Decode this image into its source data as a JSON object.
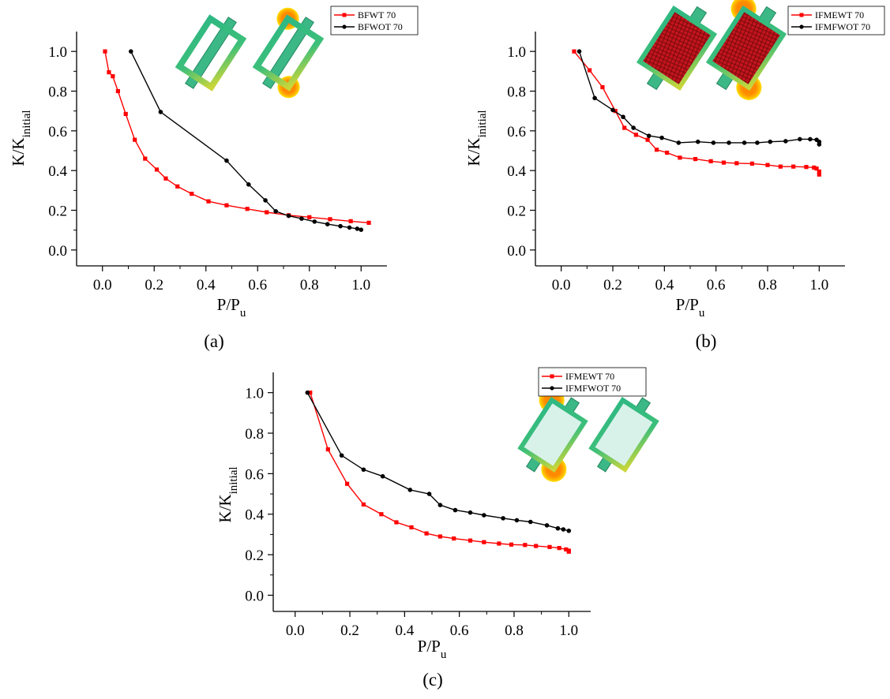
{
  "chart_data": [
    {
      "id": "a",
      "type": "line",
      "panel_label": "(a)",
      "xlabel": "P/P",
      "xlabel_sub": "u",
      "ylabel": "K/K",
      "ylabel_sub": "initial",
      "xlim": [
        -0.1,
        1.1
      ],
      "ylim": [
        -0.08,
        1.1
      ],
      "xticks": [
        "0.0",
        "0.2",
        "0.4",
        "0.6",
        "0.8",
        "1.0"
      ],
      "yticks": [
        "0.0",
        "0.2",
        "0.4",
        "0.6",
        "0.8",
        "1.0"
      ],
      "legend_position": "top-right",
      "series": [
        {
          "name": "BFWT 70",
          "color": "#ff0000",
          "marker": "square",
          "x": [
            0.01,
            0.025,
            0.04,
            0.06,
            0.09,
            0.125,
            0.165,
            0.21,
            0.245,
            0.29,
            0.345,
            0.41,
            0.48,
            0.56,
            0.635,
            0.72,
            0.8,
            0.88,
            0.96,
            1.03
          ],
          "y": [
            1.0,
            0.895,
            0.875,
            0.8,
            0.685,
            0.555,
            0.46,
            0.405,
            0.36,
            0.32,
            0.283,
            0.245,
            0.225,
            0.207,
            0.19,
            0.175,
            0.165,
            0.155,
            0.145,
            0.137
          ]
        },
        {
          "name": "BFWOT 70",
          "color": "#000000",
          "marker": "circle",
          "x": [
            0.11,
            0.225,
            0.48,
            0.565,
            0.63,
            0.67,
            0.72,
            0.77,
            0.82,
            0.87,
            0.92,
            0.955,
            0.985,
            1.0
          ],
          "y": [
            1.0,
            0.695,
            0.45,
            0.33,
            0.25,
            0.195,
            0.172,
            0.158,
            0.143,
            0.13,
            0.12,
            0.113,
            0.107,
            0.102
          ]
        }
      ]
    },
    {
      "id": "b",
      "type": "line",
      "panel_label": "(b)",
      "xlabel": "P/P",
      "xlabel_sub": "u",
      "ylabel": "K/K",
      "ylabel_sub": "initial",
      "xlim": [
        -0.1,
        1.1
      ],
      "ylim": [
        -0.08,
        1.1
      ],
      "xticks": [
        "0.0",
        "0.2",
        "0.4",
        "0.6",
        "0.8",
        "1.0"
      ],
      "yticks": [
        "0.0",
        "0.2",
        "0.4",
        "0.6",
        "0.8",
        "1.0"
      ],
      "legend_position": "top-right",
      "series": [
        {
          "name": "IFMEWT 70",
          "color": "#ff0000",
          "marker": "square",
          "x": [
            0.05,
            0.11,
            0.16,
            0.21,
            0.245,
            0.29,
            0.335,
            0.37,
            0.41,
            0.46,
            0.52,
            0.58,
            0.63,
            0.68,
            0.74,
            0.8,
            0.85,
            0.9,
            0.95,
            0.98,
            0.99,
            1.0,
            1.0
          ],
          "y": [
            1.0,
            0.905,
            0.82,
            0.7,
            0.615,
            0.58,
            0.555,
            0.505,
            0.49,
            0.465,
            0.458,
            0.447,
            0.44,
            0.437,
            0.435,
            0.428,
            0.42,
            0.42,
            0.418,
            0.415,
            0.41,
            0.395,
            0.38
          ]
        },
        {
          "name": "IFMFWOT 70",
          "color": "#000000",
          "marker": "circle",
          "x": [
            0.07,
            0.13,
            0.2,
            0.24,
            0.28,
            0.34,
            0.39,
            0.455,
            0.53,
            0.59,
            0.65,
            0.71,
            0.76,
            0.81,
            0.87,
            0.925,
            0.965,
            0.99,
            1.0,
            1.0
          ],
          "y": [
            1.0,
            0.765,
            0.705,
            0.67,
            0.615,
            0.575,
            0.565,
            0.54,
            0.545,
            0.54,
            0.54,
            0.54,
            0.54,
            0.545,
            0.548,
            0.558,
            0.558,
            0.555,
            0.545,
            0.532
          ]
        }
      ]
    },
    {
      "id": "c",
      "type": "line",
      "panel_label": "(c)",
      "xlabel": "P/P",
      "xlabel_sub": "u",
      "ylabel": "K/K",
      "ylabel_sub": "initial",
      "xlim": [
        -0.08,
        1.08
      ],
      "ylim": [
        -0.08,
        1.1
      ],
      "xticks": [
        "0.0",
        "0.2",
        "0.4",
        "0.6",
        "0.8",
        "1.0"
      ],
      "yticks": [
        "0.0",
        "0.2",
        "0.4",
        "0.6",
        "0.8",
        "1.0"
      ],
      "legend_position": "top-left",
      "series": [
        {
          "name": "IFMEWT 70",
          "color": "#ff0000",
          "marker": "square",
          "x": [
            0.055,
            0.12,
            0.19,
            0.25,
            0.315,
            0.37,
            0.425,
            0.48,
            0.53,
            0.58,
            0.64,
            0.69,
            0.745,
            0.79,
            0.84,
            0.88,
            0.93,
            0.965,
            0.99,
            1.0,
            1.0
          ],
          "y": [
            1.0,
            0.72,
            0.55,
            0.448,
            0.4,
            0.36,
            0.335,
            0.305,
            0.29,
            0.28,
            0.27,
            0.262,
            0.255,
            0.25,
            0.248,
            0.243,
            0.238,
            0.233,
            0.226,
            0.22,
            0.215
          ]
        },
        {
          "name": "IFMFWOT 70",
          "color": "#000000",
          "marker": "circle",
          "x": [
            0.045,
            0.17,
            0.25,
            0.32,
            0.42,
            0.49,
            0.53,
            0.585,
            0.64,
            0.69,
            0.76,
            0.81,
            0.86,
            0.92,
            0.96,
            0.98,
            1.0
          ],
          "y": [
            1.0,
            0.69,
            0.62,
            0.587,
            0.52,
            0.5,
            0.445,
            0.42,
            0.408,
            0.395,
            0.38,
            0.37,
            0.362,
            0.345,
            0.33,
            0.325,
            0.318
          ]
        }
      ]
    }
  ]
}
